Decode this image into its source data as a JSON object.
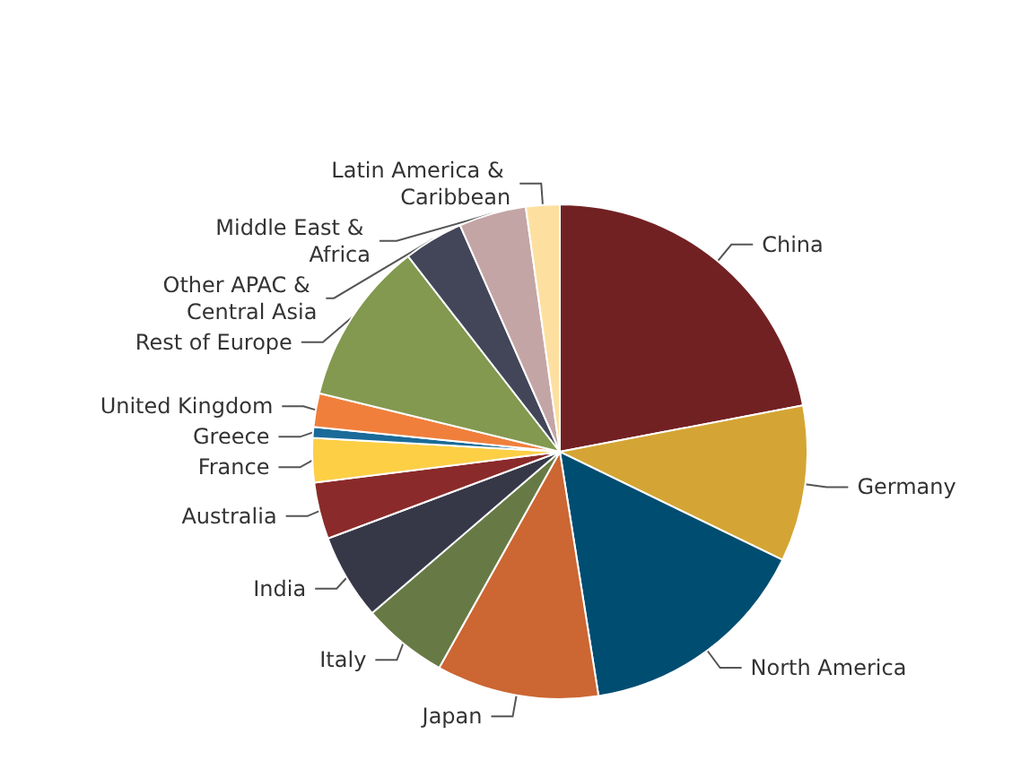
{
  "chart_data": {
    "type": "pie",
    "legend": false,
    "categories": [
      "China",
      "Germany",
      "North America",
      "Japan",
      "Italy",
      "India",
      "Australia",
      "France",
      "Greece",
      "United Kingdom",
      "Rest of Europe",
      "Other APAC & Central Asia",
      "Middle East & Africa",
      "Latin America & Caribbean"
    ],
    "values": [
      22,
      10.2,
      15.3,
      10.6,
      5.6,
      5.6,
      3.7,
      2.9,
      0.7,
      2.2,
      10.7,
      3.9,
      4.4,
      2.2
    ],
    "colors": [
      "#722123",
      "#d4a534",
      "#004d72",
      "#cc6633",
      "#677a45",
      "#363848",
      "#8b2a2a",
      "#fccf45",
      "#1a6b99",
      "#f07f3c",
      "#82994f",
      "#434559",
      "#c4a5a5",
      "#fde0a0"
    ]
  }
}
